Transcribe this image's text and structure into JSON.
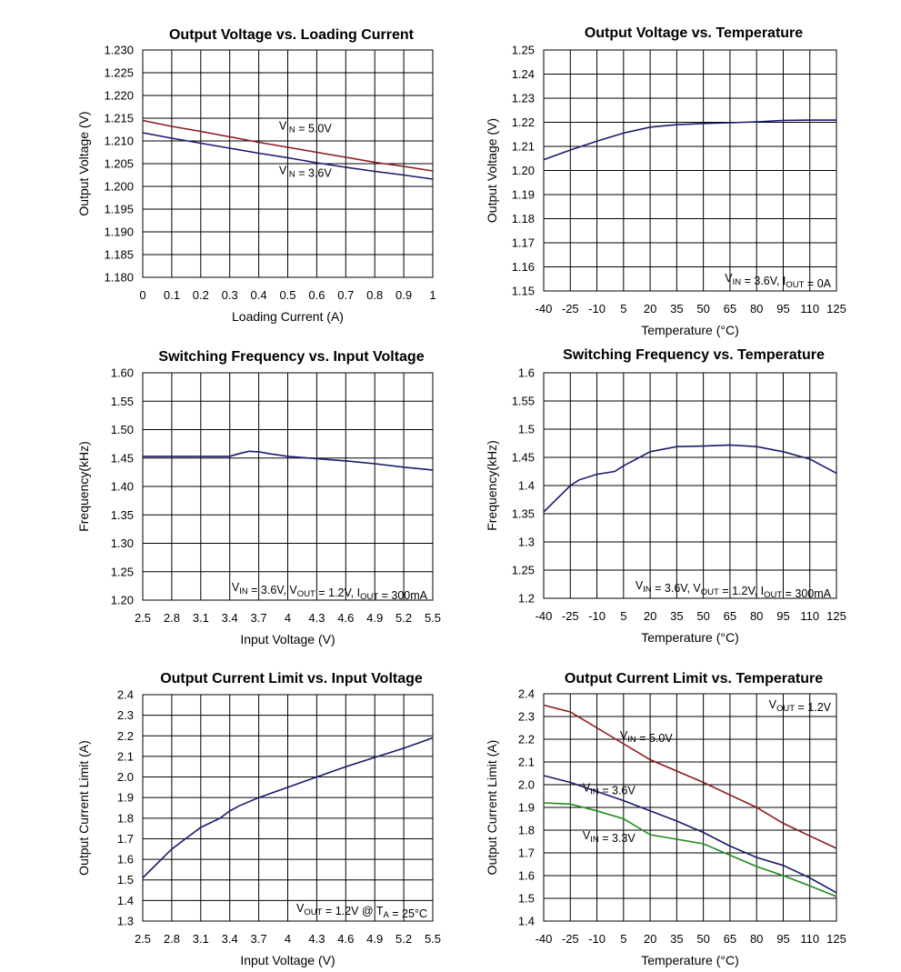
{
  "chart_data": [
    {
      "type": "line",
      "title": "Output Voltage vs. Loading Current",
      "xlabel": "Loading Current (A)",
      "ylabel": "Output Voltage (V)",
      "xticks": [
        "0",
        "0.1",
        "0.2",
        "0.3",
        "0.4",
        "0.5",
        "0.6",
        "0.7",
        "0.8",
        "0.9",
        "1"
      ],
      "yticks": [
        "1.180",
        "1.185",
        "1.190",
        "1.195",
        "1.200",
        "1.205",
        "1.210",
        "1.215",
        "1.220",
        "1.225",
        "1.230"
      ],
      "xlim": [
        0,
        1
      ],
      "ylim": [
        1.18,
        1.23
      ],
      "grid": true,
      "series": [
        {
          "name": "VIN = 5.0V",
          "color": "#8b1a1a",
          "x": [
            0,
            0.1,
            0.2,
            0.3,
            0.4,
            0.5,
            0.6,
            0.7,
            0.8,
            0.9,
            1.0
          ],
          "y": [
            1.2145,
            1.2132,
            1.2121,
            1.2109,
            1.2097,
            1.2086,
            1.2075,
            1.2064,
            1.2053,
            1.2044,
            1.2034
          ]
        },
        {
          "name": "VIN = 3.6V",
          "color": "#1a1a6e",
          "x": [
            0,
            0.1,
            0.2,
            0.3,
            0.4,
            0.5,
            0.6,
            0.7,
            0.8,
            0.9,
            1.0
          ],
          "y": [
            1.2118,
            1.2106,
            1.2095,
            1.2084,
            1.2073,
            1.2063,
            1.2052,
            1.2042,
            1.2033,
            1.2025,
            1.2016
          ]
        }
      ],
      "labels": [
        {
          "text": "VIN = 5.0V",
          "x": 0.47,
          "y": 1.2125,
          "sub": "IN"
        },
        {
          "text": "VIN = 3.6V",
          "x": 0.47,
          "y": 1.2027,
          "sub": "IN"
        }
      ],
      "note": ""
    },
    {
      "type": "line",
      "title": "Output Voltage vs. Temperature",
      "xlabel": "Temperature (°C)",
      "ylabel": "Output Voltage (V)",
      "xticks": [
        "-40",
        "-25",
        "-10",
        "5",
        "20",
        "35",
        "50",
        "65",
        "80",
        "95",
        "110",
        "125"
      ],
      "yticks": [
        "1.15",
        "1.16",
        "1.17",
        "1.18",
        "1.19",
        "1.20",
        "1.21",
        "1.22",
        "1.23",
        "1.24",
        "1.25"
      ],
      "xlim": [
        -40,
        125
      ],
      "ylim": [
        1.15,
        1.25
      ],
      "grid": true,
      "series": [
        {
          "name": "",
          "color": "#1a1a6e",
          "x": [
            -40,
            -25,
            -10,
            5,
            20,
            35,
            50,
            65,
            80,
            95,
            110,
            125
          ],
          "y": [
            1.2045,
            1.2085,
            1.2122,
            1.2155,
            1.218,
            1.219,
            1.2195,
            1.2198,
            1.2202,
            1.2208,
            1.2209,
            1.2209
          ]
        }
      ],
      "labels": [],
      "note": "VIN = 3.6V, IOUT = 0A"
    },
    {
      "type": "line",
      "title": "Switching Frequency vs. Input Voltage",
      "xlabel": "Input Voltage (V)",
      "ylabel": "Frequency(kHz)",
      "xticks": [
        "2.5",
        "2.8",
        "3.1",
        "3.4",
        "3.7",
        "4",
        "4.3",
        "4.6",
        "4.9",
        "5.2",
        "5.5"
      ],
      "yticks": [
        "1.20",
        "1.25",
        "1.30",
        "1.35",
        "1.40",
        "1.45",
        "1.50",
        "1.55",
        "1.60"
      ],
      "xlim": [
        2.5,
        5.5
      ],
      "ylim": [
        1.2,
        1.6
      ],
      "grid": true,
      "series": [
        {
          "name": "",
          "color": "#1a1a6e",
          "x": [
            2.5,
            2.8,
            3.1,
            3.4,
            3.5,
            3.6,
            3.7,
            3.8,
            4.0,
            4.3,
            4.6,
            4.9,
            5.2,
            5.5
          ],
          "y": [
            1.453,
            1.453,
            1.453,
            1.453,
            1.458,
            1.462,
            1.461,
            1.458,
            1.453,
            1.449,
            1.445,
            1.44,
            1.434,
            1.429
          ]
        }
      ],
      "labels": [],
      "note": "VIN = 3.6V, VOUT = 1.2V, IOUT = 300mA"
    },
    {
      "type": "line",
      "title": "Switching Frequency vs. Temperature",
      "xlabel": "Temperature (°C)",
      "ylabel": "Frequency(kHz)",
      "xticks": [
        "-40",
        "-25",
        "-10",
        "5",
        "20",
        "35",
        "50",
        "65",
        "80",
        "95",
        "110",
        "125"
      ],
      "yticks": [
        "1.2",
        "1.25",
        "1.3",
        "1.35",
        "1.4",
        "1.45",
        "1.5",
        "1.55",
        "1.6"
      ],
      "xlim": [
        -40,
        125
      ],
      "ylim": [
        1.2,
        1.6
      ],
      "grid": true,
      "series": [
        {
          "name": "",
          "color": "#1a1a6e",
          "x": [
            -40,
            -25,
            -20,
            -10,
            0,
            5,
            20,
            35,
            50,
            65,
            80,
            95,
            110,
            125
          ],
          "y": [
            1.353,
            1.4,
            1.41,
            1.42,
            1.425,
            1.435,
            1.46,
            1.469,
            1.47,
            1.472,
            1.469,
            1.46,
            1.447,
            1.422
          ]
        }
      ],
      "labels": [],
      "note": "VIN = 3.6V, VOUT = 1.2V, IOUT = 300mA"
    },
    {
      "type": "line",
      "title": "Output Current Limit vs. Input Voltage",
      "xlabel": "Input Voltage (V)",
      "ylabel": "Output Current Limit (A)",
      "xticks": [
        "2.5",
        "2.8",
        "3.1",
        "3.4",
        "3.7",
        "4",
        "4.3",
        "4.6",
        "4.9",
        "5.2",
        "5.5"
      ],
      "yticks": [
        "1.3",
        "1.4",
        "1.5",
        "1.6",
        "1.7",
        "1.8",
        "1.9",
        "2.0",
        "2.1",
        "2.2",
        "2.3",
        "2.4"
      ],
      "xlim": [
        2.5,
        5.5
      ],
      "ylim": [
        1.3,
        2.4
      ],
      "grid": true,
      "series": [
        {
          "name": "",
          "color": "#1a1a6e",
          "x": [
            2.5,
            2.8,
            3.0,
            3.1,
            3.3,
            3.4,
            3.5,
            3.7,
            4.0,
            4.3,
            4.6,
            4.9,
            5.2,
            5.5
          ],
          "y": [
            1.51,
            1.65,
            1.72,
            1.755,
            1.8,
            1.835,
            1.86,
            1.9,
            1.95,
            2.0,
            2.05,
            2.095,
            2.14,
            2.19
          ]
        }
      ],
      "labels": [],
      "note": "VOUT = 1.2V @ TA = 25°C"
    },
    {
      "type": "line",
      "title": "Output Current Limit vs. Temperature",
      "xlabel": "Temperature (°C)",
      "ylabel": "Output Current Limit (A)",
      "xticks": [
        "-40",
        "-25",
        "-10",
        "5",
        "20",
        "35",
        "50",
        "65",
        "80",
        "95",
        "110",
        "125"
      ],
      "yticks": [
        "1.4",
        "1.5",
        "1.6",
        "1.7",
        "1.8",
        "1.9",
        "2.0",
        "2.1",
        "2.2",
        "2.3",
        "2.4"
      ],
      "xlim": [
        -40,
        125
      ],
      "ylim": [
        1.4,
        2.4
      ],
      "grid": true,
      "series": [
        {
          "name": "VIN = 5.0V",
          "color": "#8b1a1a",
          "x": [
            -40,
            -25,
            -10,
            5,
            20,
            35,
            50,
            65,
            80,
            95,
            110,
            125
          ],
          "y": [
            2.35,
            2.32,
            2.25,
            2.18,
            2.11,
            2.06,
            2.01,
            1.955,
            1.9,
            1.83,
            1.775,
            1.72
          ]
        },
        {
          "name": "VIN = 3.6V",
          "color": "#1a1a6e",
          "x": [
            -40,
            -25,
            -10,
            5,
            20,
            35,
            50,
            65,
            80,
            95,
            110,
            125
          ],
          "y": [
            2.04,
            2.01,
            1.97,
            1.93,
            1.885,
            1.84,
            1.79,
            1.73,
            1.68,
            1.645,
            1.59,
            1.525
          ]
        },
        {
          "name": "VIN = 3.3V",
          "color": "#1e8c1e",
          "x": [
            -40,
            -25,
            -10,
            5,
            20,
            35,
            50,
            65,
            80,
            95,
            110,
            125
          ],
          "y": [
            1.92,
            1.915,
            1.885,
            1.85,
            1.78,
            1.76,
            1.74,
            1.69,
            1.64,
            1.6,
            1.555,
            1.508
          ]
        }
      ],
      "labels": [
        {
          "text": "VIN = 5.0V",
          "x": 3,
          "y": 2.2,
          "sub": "IN"
        },
        {
          "text": "VIN = 3.6V",
          "x": -18,
          "y": 1.97,
          "sub": "IN"
        },
        {
          "text": "VIN = 3.3V",
          "x": -18,
          "y": 1.76,
          "sub": "IN"
        }
      ],
      "note": "VOUT = 1.2V"
    }
  ]
}
